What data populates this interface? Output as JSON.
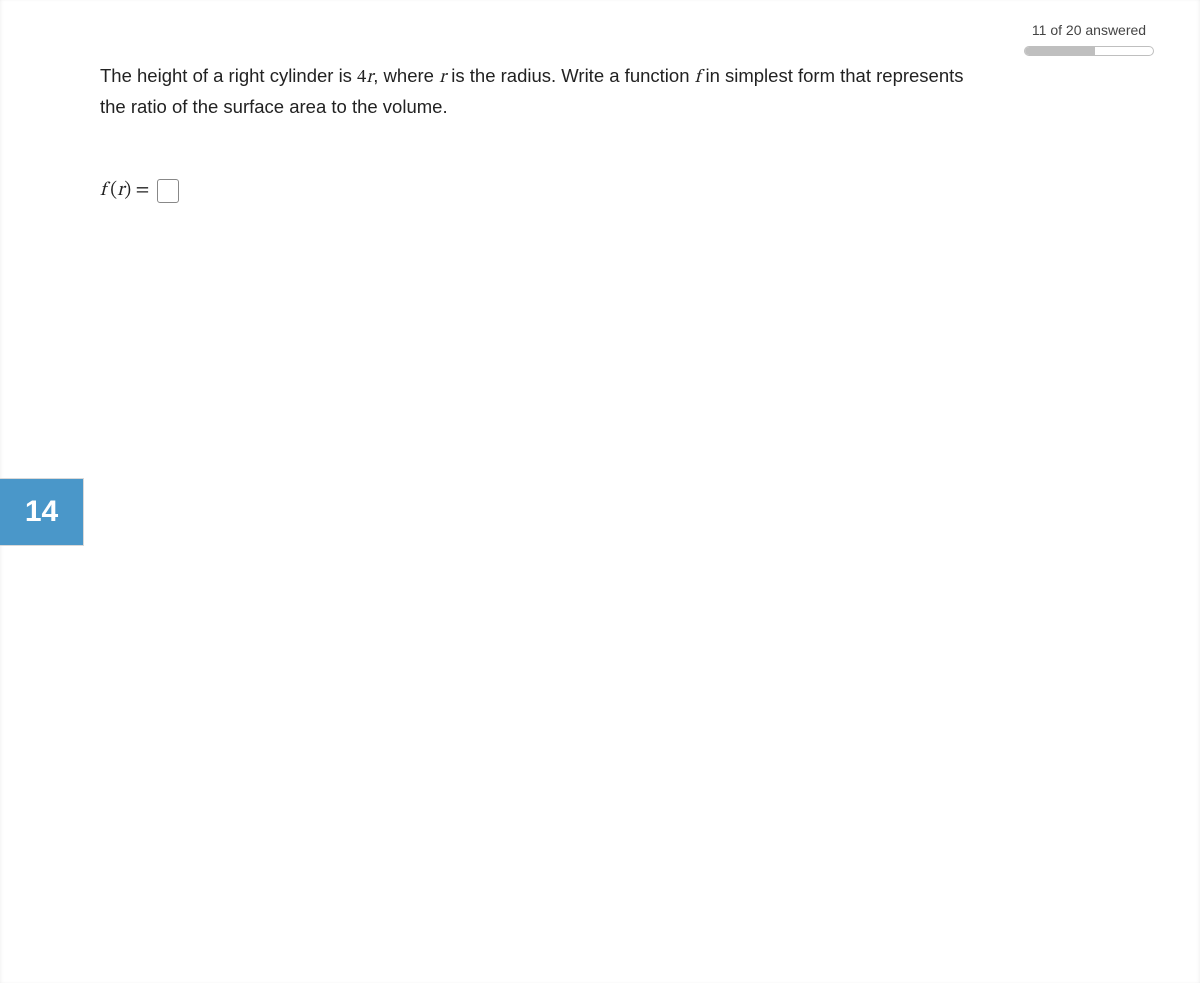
{
  "progress": {
    "label": "11 of 20 answered",
    "answered": 11,
    "total": 20,
    "percent": 55,
    "track_border_color": "#bfbfbf",
    "fill_color": "#bfbfbf",
    "track_bg": "#ffffff"
  },
  "question": {
    "number": "14",
    "tab_bg": "#4a97c9",
    "tab_fg": "#ffffff",
    "text_pre": "The height of a right cylinder is ",
    "math1": "4r",
    "text_mid1": ", where ",
    "math2": "r",
    "text_mid2": " is the radius. Write a function ",
    "math3": "f",
    "text_post": " in simplest form that represents the ratio of the surface area to the volume."
  },
  "answer": {
    "label_f": "f",
    "label_open": " (",
    "label_var": "r",
    "label_close": ") = ",
    "value": ""
  },
  "colors": {
    "page_bg": "#ffffff",
    "text": "#222222",
    "input_border": "#888888"
  }
}
